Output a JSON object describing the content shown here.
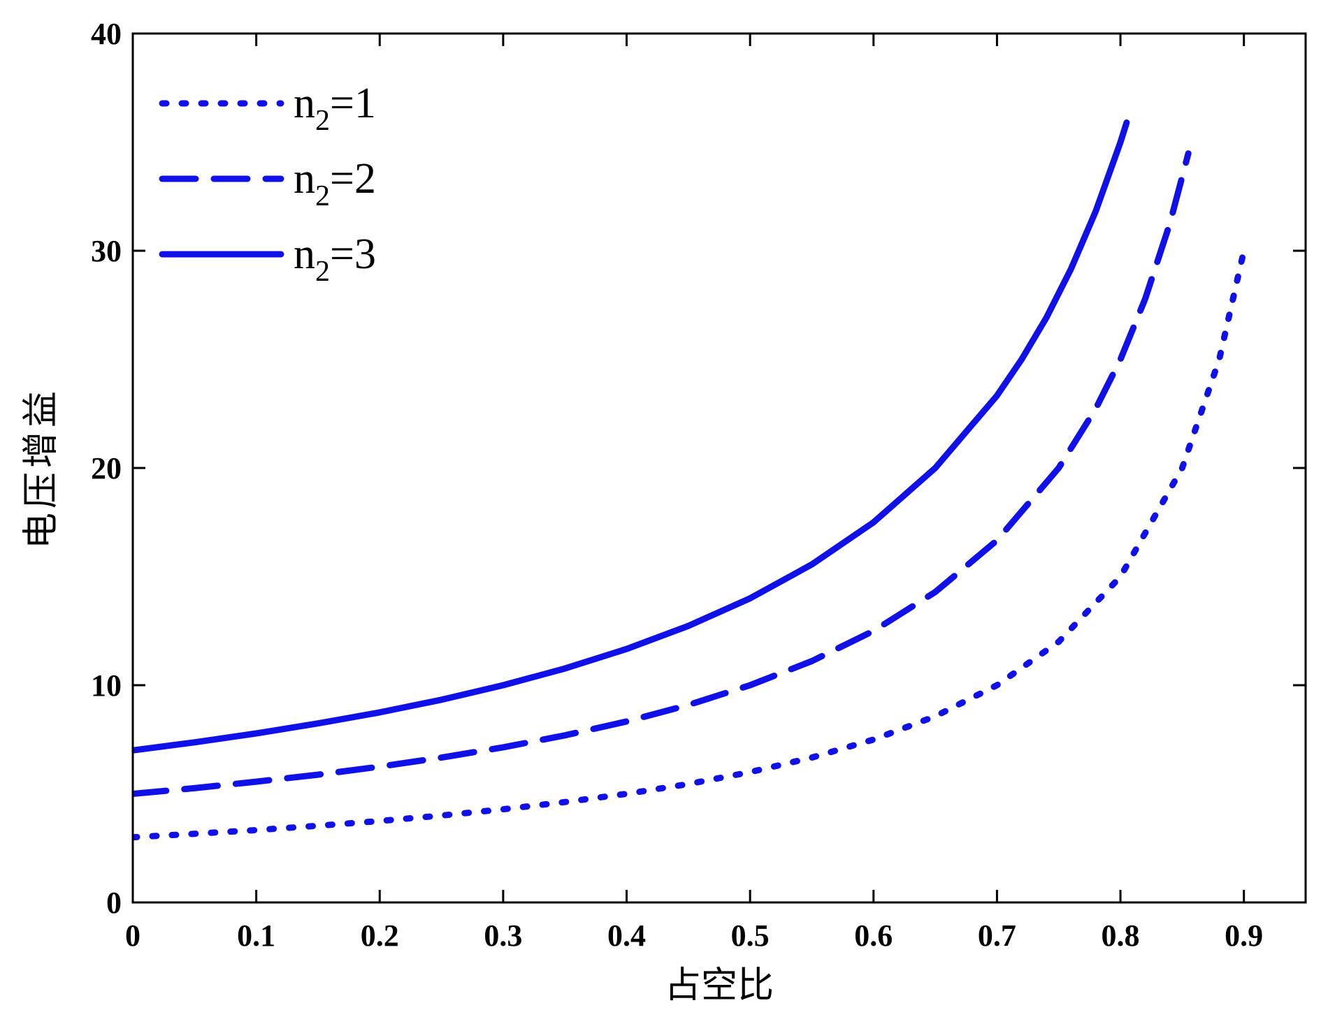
{
  "chart_data": {
    "type": "line",
    "title": "",
    "xlabel": "占空比",
    "ylabel": "电压增益",
    "xlim": [
      0,
      0.95
    ],
    "ylim": [
      0,
      40
    ],
    "x_ticks": [
      "0",
      "0.1",
      "0.2",
      "0.3",
      "0.4",
      "0.5",
      "0.6",
      "0.7",
      "0.8",
      "0.9"
    ],
    "y_ticks": [
      "0",
      "10",
      "20",
      "30",
      "40"
    ],
    "legend_position": "top-left",
    "grid": false,
    "line_color": "#1010e8",
    "series": [
      {
        "name": "n2=1",
        "name_base": "n",
        "name_sub": "2",
        "name_rest": "=1",
        "style": "dotted",
        "x": [
          0,
          0.05,
          0.1,
          0.15,
          0.2,
          0.25,
          0.3,
          0.35,
          0.4,
          0.45,
          0.5,
          0.55,
          0.6,
          0.65,
          0.7,
          0.75,
          0.8,
          0.85,
          0.88,
          0.9
        ],
        "y": [
          3.0,
          3.16,
          3.33,
          3.53,
          3.75,
          4.0,
          4.29,
          4.62,
          5.0,
          5.45,
          6.0,
          6.67,
          7.5,
          8.57,
          10.0,
          12.0,
          15.0,
          20.0,
          25.0,
          30.0
        ]
      },
      {
        "name": "n2=2",
        "name_base": "n",
        "name_sub": "2",
        "name_rest": "=2",
        "style": "dashed",
        "x": [
          0,
          0.05,
          0.1,
          0.15,
          0.2,
          0.25,
          0.3,
          0.35,
          0.4,
          0.45,
          0.5,
          0.55,
          0.6,
          0.65,
          0.7,
          0.75,
          0.78,
          0.8,
          0.82,
          0.84,
          0.855
        ],
        "y": [
          5.0,
          5.26,
          5.56,
          5.88,
          6.25,
          6.67,
          7.14,
          7.69,
          8.33,
          9.09,
          10.0,
          11.11,
          12.5,
          14.29,
          16.67,
          20.0,
          22.73,
          25.0,
          27.78,
          31.25,
          34.48
        ]
      },
      {
        "name": "n2=3",
        "name_base": "n",
        "name_sub": "2",
        "name_rest": "=3",
        "style": "solid",
        "x": [
          0,
          0.05,
          0.1,
          0.15,
          0.2,
          0.25,
          0.3,
          0.35,
          0.4,
          0.45,
          0.5,
          0.55,
          0.6,
          0.65,
          0.7,
          0.72,
          0.74,
          0.76,
          0.78,
          0.8,
          0.805
        ],
        "y": [
          7.0,
          7.37,
          7.78,
          8.24,
          8.75,
          9.33,
          10.0,
          10.77,
          11.67,
          12.73,
          14.0,
          15.56,
          17.5,
          20.0,
          23.33,
          25.0,
          26.92,
          29.17,
          31.82,
          35.0,
          35.9
        ]
      }
    ]
  }
}
